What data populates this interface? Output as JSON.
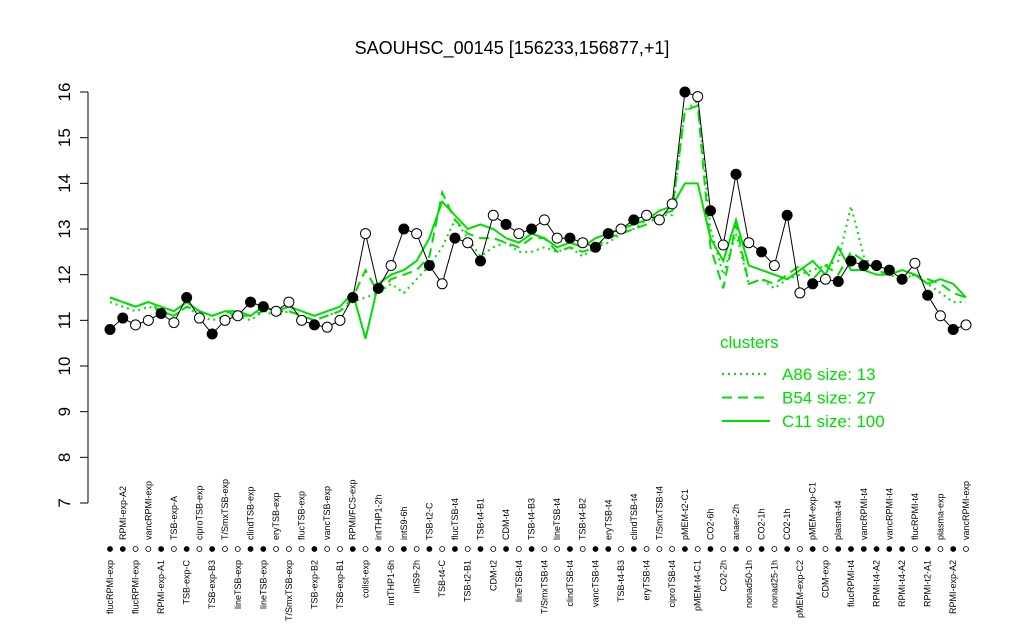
{
  "chart_data": {
    "type": "line",
    "title": "SAOUHSC_00145 [156233,156877,+1]",
    "categories": [
      "flucRPMI-exp",
      "RPMI-exp-A2",
      "flucRPMI-exp",
      "vancRPMI-exp",
      "RPMI-exp-A1",
      "TSB-exp-A",
      "TSB-exp-C",
      "ciproTSB-exp",
      "TSB-exp-B3",
      "T/SmxTSB-exp",
      "lineTSB-exp",
      "clindTSB-exp",
      "lineTSB-exp",
      "eryTSB-exp",
      "T/SmxTSB-exp",
      "flucTSB-exp",
      "TSB-exp-B2",
      "vancTSB-exp",
      "TSB-exp-B1",
      "RPMI/FCS-exp",
      "colist-exp",
      "intTHP1-2h",
      "intTHP1-6h",
      "intS9-6h",
      "intS9-2h",
      "TSB-t2-C",
      "TSB-t4-C",
      "flucTSB-t4",
      "TSB-t2-B1",
      "TSB-t4-B1",
      "CDM-t2",
      "CDM-t4",
      "lineTSB-t4",
      "TSB-t4-B3",
      "T/SmxTSB-t4",
      "lineTSB-t4",
      "clindTSB-t4",
      "TSB-t4-B2",
      "vancTSB-t4",
      "eryTSB-t4",
      "TSB-t4-B3",
      "clindTSB-t4",
      "eryTSB-t4",
      "T/SmxTSB-t4",
      "ciproTSB-t4",
      "pMEM-t2-C1",
      "pMEM-t4-C1",
      "CO2-6h",
      "CO2-2h",
      "anaer-2h",
      "nonad50-1h",
      "CO2-1h",
      "nonad25-1h",
      "CO2-1h",
      "pMEM-exp-C2",
      "pMEM-exp-C1",
      "CDM-exp",
      "plasma-t4",
      "flucRPMI-t4",
      "vancRPMI-t4",
      "RPMI-t4-A2",
      "vancRPMI-t4",
      "RPMI-t4-A2",
      "flucRPMI-t4",
      "RPMI-t2-A1",
      "plasma-exp",
      "RPMI-exp-A2",
      "vancRPMI-exp"
    ],
    "values": [
      10.8,
      11.05,
      10.9,
      11.0,
      11.15,
      10.95,
      11.5,
      11.05,
      10.7,
      11.0,
      11.1,
      11.4,
      11.3,
      11.2,
      11.4,
      11.0,
      10.9,
      10.85,
      11.0,
      11.5,
      12.9,
      11.7,
      12.2,
      13.0,
      12.9,
      12.2,
      11.8,
      12.8,
      12.7,
      12.3,
      13.3,
      13.1,
      12.9,
      13.0,
      13.2,
      12.8,
      12.8,
      12.7,
      12.6,
      12.9,
      13.0,
      13.2,
      13.3,
      13.2,
      13.55,
      16.0,
      15.9,
      13.4,
      12.65,
      14.2,
      12.7,
      12.5,
      12.2,
      13.3,
      11.6,
      11.8,
      11.9,
      11.85,
      12.3,
      12.2,
      12.2,
      12.1,
      11.9,
      12.25,
      11.55,
      11.1,
      10.8,
      10.9
    ],
    "point_colors": [
      "black",
      "black",
      "white",
      "white",
      "black",
      "white",
      "black",
      "white",
      "black",
      "white",
      "white",
      "black",
      "black",
      "white",
      "white",
      "white",
      "black",
      "white",
      "white",
      "black",
      "white",
      "black",
      "white",
      "black",
      "white",
      "black",
      "white",
      "black",
      "white",
      "black",
      "white",
      "black",
      "white",
      "black",
      "white",
      "white",
      "black",
      "white",
      "black",
      "black",
      "white",
      "black",
      "white",
      "white",
      "white",
      "black",
      "white",
      "black",
      "white",
      "black",
      "white",
      "black",
      "white",
      "black",
      "white",
      "black",
      "white",
      "black",
      "black",
      "black",
      "black",
      "black",
      "black",
      "white",
      "black",
      "white",
      "black",
      "white"
    ],
    "series": [
      {
        "name": "A86 size: 13",
        "color": "#00dd00",
        "dash": "dotted",
        "values": [
          11.4,
          11.3,
          11.2,
          11.3,
          11.2,
          11.1,
          11.3,
          11.1,
          11.0,
          11.1,
          11.1,
          11.0,
          11.2,
          11.1,
          11.2,
          11.1,
          11.0,
          11.1,
          11.2,
          11.4,
          11.5,
          11.6,
          11.8,
          11.6,
          11.9,
          12.2,
          12.6,
          13.2,
          12.8,
          12.4,
          12.6,
          12.7,
          12.5,
          12.5,
          12.6,
          12.5,
          12.6,
          12.4,
          12.6,
          12.7,
          12.9,
          13.0,
          13.2,
          13.3,
          13.3,
          15.6,
          15.8,
          13.0,
          12.0,
          12.9,
          11.8,
          11.9,
          11.7,
          11.9,
          12.0,
          12.1,
          12.2,
          12.3,
          13.5,
          12.4,
          12.1,
          12.0,
          11.9,
          12.0,
          11.8,
          11.6,
          11.4,
          11.4
        ]
      },
      {
        "name": "B54 size: 27",
        "color": "#00dd00",
        "dash": "dashed",
        "values": [
          11.5,
          11.4,
          11.3,
          11.4,
          11.2,
          11.1,
          11.3,
          11.2,
          11.1,
          11.2,
          11.1,
          11.1,
          11.2,
          11.2,
          11.2,
          11.1,
          11.0,
          11.1,
          11.2,
          11.5,
          12.1,
          11.6,
          11.9,
          12.0,
          12.1,
          12.4,
          13.8,
          13.2,
          12.9,
          12.8,
          12.8,
          12.7,
          12.6,
          12.8,
          12.8,
          12.5,
          12.6,
          12.5,
          12.6,
          12.8,
          12.9,
          13.0,
          13.1,
          13.3,
          13.4,
          15.6,
          15.7,
          12.6,
          11.7,
          13.1,
          11.8,
          11.9,
          11.8,
          12.0,
          12.2,
          11.9,
          12.2,
          12.0,
          12.5,
          12.3,
          12.1,
          12.0,
          11.9,
          12.0,
          11.9,
          11.8,
          11.6,
          11.5
        ]
      },
      {
        "name": "C11 size: 100",
        "color": "#00dd00",
        "dash": "solid",
        "values": [
          11.5,
          11.4,
          11.3,
          11.4,
          11.3,
          11.2,
          11.4,
          11.2,
          11.1,
          11.2,
          11.2,
          11.1,
          11.3,
          11.2,
          11.3,
          11.2,
          11.1,
          11.2,
          11.3,
          11.6,
          10.6,
          11.8,
          12.0,
          12.1,
          12.3,
          12.8,
          13.6,
          13.3,
          13.0,
          13.1,
          13.0,
          12.8,
          12.7,
          12.9,
          12.8,
          12.6,
          12.7,
          12.6,
          12.8,
          12.9,
          13.0,
          13.1,
          13.2,
          13.4,
          13.5,
          14.0,
          14.0,
          12.8,
          12.3,
          13.2,
          12.2,
          12.1,
          12.0,
          11.9,
          12.1,
          12.3,
          12.0,
          12.6,
          12.1,
          12.1,
          12.0,
          12.0,
          12.1,
          12.0,
          11.8,
          11.9,
          11.8,
          11.5
        ]
      }
    ],
    "legend_title": "clusters",
    "ylim": [
      7,
      16
    ],
    "yticks": [
      7,
      8,
      9,
      10,
      11,
      12,
      13,
      14,
      15,
      16
    ]
  }
}
